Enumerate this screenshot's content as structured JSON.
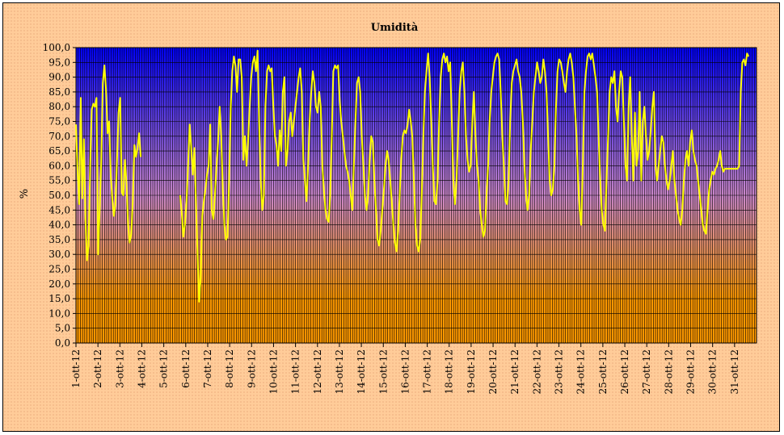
{
  "chart_data": {
    "type": "line",
    "title": "Umidità",
    "ylabel": "%",
    "xlabel": "",
    "ylim": [
      0,
      100
    ],
    "ytick_step": 5,
    "grid": true,
    "x": [
      "1-ott-12",
      "2-ott-12",
      "3-ott-12",
      "4-ott-12",
      "5-ott-12",
      "6-ott-12",
      "7-ott-12",
      "8-ott-12",
      "9-ott-12",
      "10-ott-12",
      "11-ott-12",
      "12-ott-12",
      "13-ott-12",
      "14-ott-12",
      "15-ott-12",
      "16-ott-12",
      "17-ott-12",
      "18-ott-12",
      "19-ott-12",
      "20-ott-12",
      "21-ott-12",
      "22-ott-12",
      "23-ott-12",
      "24-ott-12",
      "25-ott-12",
      "26-ott-12",
      "27-ott-12",
      "28-ott-12",
      "29-ott-12",
      "30-ott-12",
      "31-ott-12"
    ],
    "colors": {
      "line": "#ffff00",
      "plot_top": "#0000ff",
      "plot_mid": "#cc88cc",
      "plot_bottom": "#ff9900",
      "grid": "#000000"
    },
    "series": [
      {
        "values": [
          [
            74,
            58,
            47,
            83,
            49,
            69,
            42,
            28,
            33,
            60,
            79,
            81,
            80,
            83,
            30,
            45,
            62,
            88,
            94,
            86,
            71,
            75,
            57,
            49,
            43,
            47,
            62,
            78,
            83,
            51,
            50,
            62,
            54,
            40,
            34,
            37,
            48,
            67,
            63,
            66,
            71,
            63,
            null,
            null,
            null,
            null,
            null,
            null
          ],
          [
            null,
            null,
            null,
            null,
            null,
            null,
            null,
            null,
            null,
            null,
            null,
            null,
            null,
            null,
            null,
            null,
            null,
            null,
            50,
            44,
            36,
            40,
            48,
            60,
            74,
            66,
            57,
            66,
            47,
            30,
            14,
            22,
            43,
            48,
            52,
            57,
            60,
            74,
            45,
            42,
            50,
            60,
            68,
            80,
            70,
            52,
            40,
            35
          ],
          [
            36,
            55,
            80,
            92,
            97,
            94,
            85,
            96,
            96,
            90,
            62,
            70,
            60,
            68,
            80,
            90,
            95,
            97,
            92,
            99,
            75,
            55,
            45,
            50,
            80,
            92,
            94,
            92,
            93,
            80,
            70,
            67,
            60,
            72,
            65,
            85,
            90,
            60,
            65,
            75,
            78,
            70,
            75,
            80,
            85,
            90,
            93,
            85
          ],
          [
            62,
            55,
            48,
            60,
            75,
            85,
            92,
            88,
            80,
            78,
            85,
            80,
            60,
            52,
            45,
            42,
            41,
            50,
            70,
            92,
            94,
            93,
            94,
            82,
            75,
            70,
            65,
            60,
            58,
            55,
            50,
            45,
            60,
            75,
            88,
            90,
            85,
            70,
            60,
            50,
            45,
            50,
            62,
            70,
            68,
            55,
            45,
            35
          ],
          [
            33,
            38,
            45,
            52,
            60,
            65,
            62,
            55,
            48,
            40,
            34,
            31,
            38,
            50,
            62,
            70,
            72,
            71,
            74,
            79,
            75,
            70,
            55,
            40,
            33,
            31,
            35,
            50,
            70,
            85,
            92,
            98,
            90,
            75,
            60,
            48,
            47,
            55,
            75,
            90,
            96,
            98,
            95,
            97,
            92,
            95,
            75,
            55
          ],
          [
            47,
            55,
            70,
            85,
            92,
            95,
            85,
            70,
            62,
            58,
            60,
            75,
            85,
            70,
            60,
            55,
            45,
            40,
            36,
            38,
            50,
            60,
            75,
            85,
            90,
            95,
            97,
            98,
            96,
            85,
            70,
            60,
            48,
            47,
            55,
            75,
            88,
            92,
            94,
            96,
            92,
            90,
            85,
            75,
            60,
            50,
            45,
            50
          ],
          [
            65,
            75,
            85,
            90,
            95,
            92,
            88,
            90,
            96,
            92,
            85,
            70,
            55,
            50,
            52,
            60,
            80,
            92,
            96,
            95,
            92,
            88,
            85,
            92,
            96,
            98,
            95,
            90,
            80,
            70,
            55,
            45,
            40,
            60,
            85,
            92,
            97,
            98,
            96,
            98,
            94,
            90,
            85,
            70,
            55,
            45,
            40,
            38
          ],
          [
            55,
            70,
            85,
            90,
            88,
            92,
            80,
            75,
            85,
            92,
            90,
            75,
            60,
            55,
            80,
            90,
            70,
            55,
            78,
            60,
            65,
            85,
            55,
            75,
            80,
            70,
            62,
            65,
            72,
            80,
            85,
            60,
            55,
            60,
            65,
            70,
            68,
            60,
            55,
            52,
            55,
            60,
            65,
            55,
            50,
            45,
            42,
            40
          ],
          [
            45,
            55,
            62,
            65,
            60,
            68,
            72,
            65,
            62,
            60,
            55,
            50,
            45,
            40,
            38,
            37,
            45,
            52,
            55,
            58,
            57,
            59,
            60,
            62,
            65,
            60,
            58,
            59,
            59,
            59,
            59,
            59,
            59,
            59,
            59,
            59,
            60,
            85,
            95,
            96,
            94,
            98,
            97,
            null,
            null,
            null,
            null,
            null
          ]
        ]
      }
    ]
  }
}
